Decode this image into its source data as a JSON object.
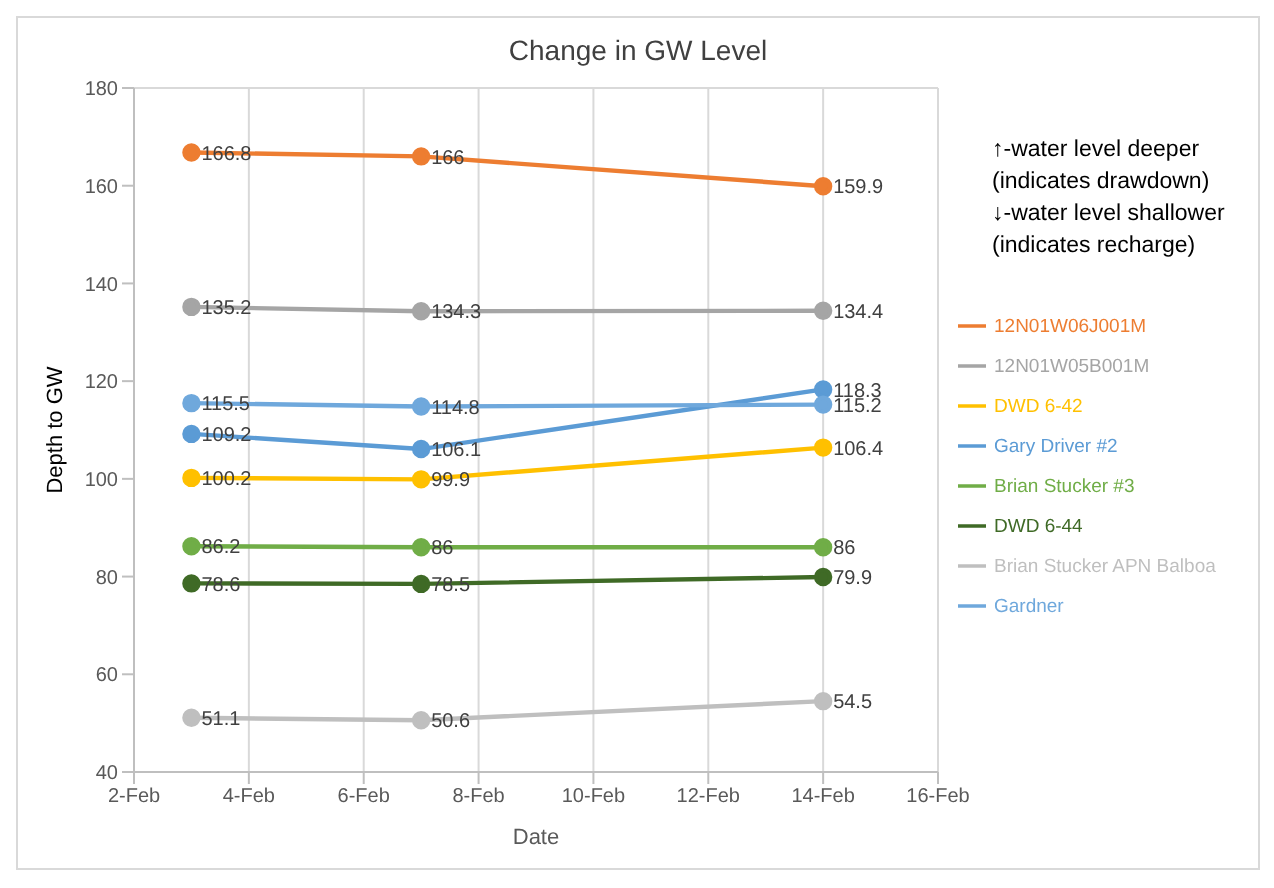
{
  "chart_data": {
    "type": "line",
    "title": "Change in GW Level",
    "xlabel": "Date",
    "ylabel": "Depth to GW",
    "x": [
      "--02-03",
      "--02-07",
      "--02-14"
    ],
    "xlim": [
      "--02-02",
      "--02-16"
    ],
    "xticks": [
      {
        "value": "--02-02",
        "label": "2-Feb"
      },
      {
        "value": "--02-04",
        "label": "4-Feb"
      },
      {
        "value": "--02-06",
        "label": "6-Feb"
      },
      {
        "value": "--02-08",
        "label": "8-Feb"
      },
      {
        "value": "--02-10",
        "label": "10-Feb"
      },
      {
        "value": "--02-12",
        "label": "12-Feb"
      },
      {
        "value": "--02-14",
        "label": "14-Feb"
      },
      {
        "value": "--02-16",
        "label": "16-Feb"
      }
    ],
    "ylim": [
      40,
      180
    ],
    "yticks": [
      40,
      60,
      80,
      100,
      120,
      140,
      160,
      180
    ],
    "grid": true,
    "legend": "right",
    "marker": "circle",
    "line_style": "solid",
    "data_labels": true,
    "annotations": [
      "↑-water level deeper (indicates drawdown)",
      "↓-water level shallower (indicates recharge)"
    ],
    "series": [
      {
        "name": "12N01W06J001M",
        "color": "#ed7d31",
        "values": [
          166.8,
          166,
          159.9
        ]
      },
      {
        "name": "12N01W05B001M",
        "color": "#a5a5a5",
        "values": [
          135.2,
          134.3,
          134.4
        ]
      },
      {
        "name": "DWD 6-42",
        "color": "#ffc000",
        "values": [
          100.2,
          99.9,
          106.4
        ]
      },
      {
        "name": "Gary Driver #2",
        "color": "#5b9bd5",
        "values": [
          109.2,
          106.1,
          118.3
        ]
      },
      {
        "name": "Brian Stucker #3",
        "color": "#70ad47",
        "values": [
          86.2,
          86,
          86
        ]
      },
      {
        "name": "DWD 6-44",
        "color": "#3f6a26",
        "values": [
          78.6,
          78.5,
          79.9
        ]
      },
      {
        "name": "Brian Stucker APN Balboa",
        "color": "#bfbfbf",
        "values": [
          51.1,
          50.6,
          54.5
        ]
      },
      {
        "name": "Gardner",
        "color": "#6fa8dc",
        "values": [
          115.5,
          114.8,
          115.2
        ]
      }
    ]
  }
}
